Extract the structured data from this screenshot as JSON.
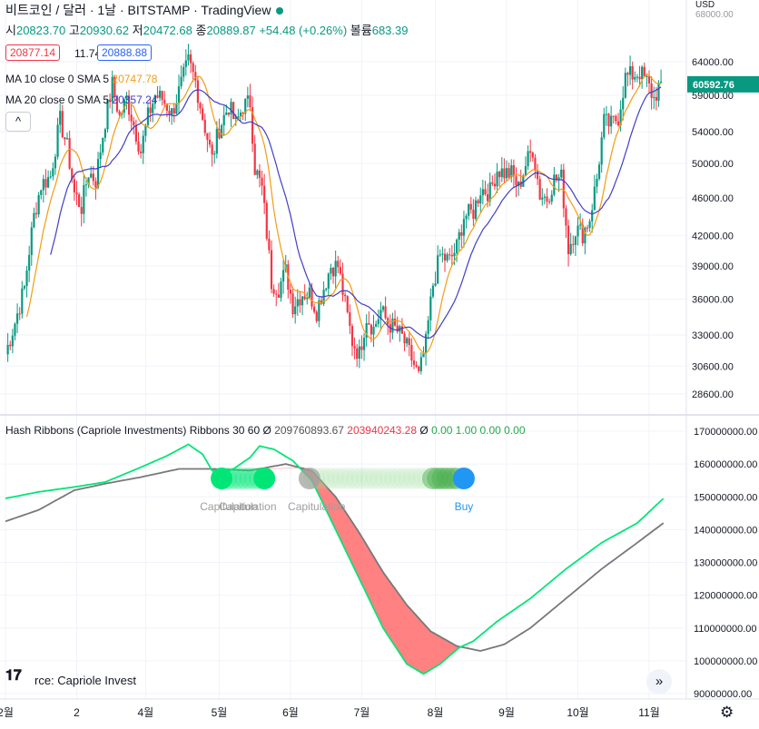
{
  "header": {
    "title": "비트코인 / 달러 · 1날 · BITSTAMP · TradingView",
    "open_label": "시",
    "open": "20823.70",
    "high_label": "고",
    "high": "20930.62",
    "low_label": "저",
    "low": "20472.68",
    "close_label": "종",
    "close": "20889.87",
    "change": "+54.48 (+0.26%)",
    "volume_label": "볼륨",
    "volume": "683.39"
  },
  "trade": {
    "sell": "20877.14",
    "spread": "11.74",
    "buy": "20888.88"
  },
  "ma10": {
    "label": "MA 10 close 0 SMA 5",
    "value": "20747.78"
  },
  "ma20": {
    "label": "MA 20 close 0 SMA 5",
    "value": "20357.24"
  },
  "collapse_label": "^",
  "indicator": {
    "label": "Hash Ribbons (Capriole Investments) Ribbons 30 60",
    "v0": "Ø",
    "v1": "209760893.67",
    "v2": "203940243.28",
    "v3": "Ø",
    "v4": "0.00",
    "v5": "1.00",
    "v6": "0.00",
    "v7": "0.00"
  },
  "signals": [
    {
      "text": "Capitulation",
      "x": "2021-05-01"
    },
    {
      "text": "Capitulation",
      "x": "2021-05-09"
    },
    {
      "text": "Capitulation",
      "x": "2021-06-07"
    },
    {
      "text": "Buy",
      "x": "2021-08-08"
    }
  ],
  "source_text": "rce: Capriole Invest",
  "nav_icon": "double-chevron-right-icon",
  "settings_icon": "gear-icon",
  "colors": {
    "up": "#089981",
    "down": "#f23645",
    "ma10": "#f39c12",
    "ma20": "#3f3fc8",
    "hash_fast": "#00e676",
    "hash_slow": "#787878",
    "ribbon": "#ff6b6b",
    "buy": "#2196f3",
    "capitulation": "#00e676",
    "price_tag": "#089981"
  },
  "chart_data": [
    {
      "type": "candlestick",
      "title": "비트코인 / 달러",
      "price_axis_label": "USD",
      "y_ticks": [
        28600,
        30600,
        33000,
        36000,
        39000,
        42000,
        46000,
        50000,
        54000,
        59000,
        64000
      ],
      "y_tick_labels": [
        "28600.00",
        "30600.00",
        "33000.00",
        "36000.00",
        "39000.00",
        "42000.00",
        "46000.00",
        "50000.00",
        "54000.00",
        "59000.00",
        "64000.00"
      ],
      "top_partial_tick": "68000.00",
      "last_price": "60592.76",
      "x_tick_labels": [
        "2월",
        "2",
        "4월",
        "5월",
        "6월",
        "7월",
        "8월",
        "9월",
        "10월",
        "11월"
      ],
      "x_tick_dates": [
        "2021-01-27",
        "2021-02-26",
        "2021-03-27",
        "2021-04-27",
        "2021-05-27",
        "2021-06-26",
        "2021-07-27",
        "2021-08-26",
        "2021-09-25",
        "2021-10-25"
      ],
      "series": [
        {
          "name": "MA 10 close 0 SMA 5"
        },
        {
          "name": "MA 20 close 0 SMA 5"
        }
      ],
      "close_path": [
        [
          "2021-01-27",
          31500
        ],
        [
          "2021-01-31",
          34000
        ],
        [
          "2021-02-04",
          37000
        ],
        [
          "2021-02-08",
          44000
        ],
        [
          "2021-02-11",
          47500
        ],
        [
          "2021-02-15",
          48500
        ],
        [
          "2021-02-19",
          55500
        ],
        [
          "2021-02-22",
          52000
        ],
        [
          "2021-02-25",
          46500
        ],
        [
          "2021-02-28",
          45000
        ],
        [
          "2021-03-03",
          49000
        ],
        [
          "2021-03-06",
          48000
        ],
        [
          "2021-03-10",
          55500
        ],
        [
          "2021-03-13",
          60500
        ],
        [
          "2021-03-16",
          56000
        ],
        [
          "2021-03-19",
          58500
        ],
        [
          "2021-03-22",
          55000
        ],
        [
          "2021-03-25",
          51500
        ],
        [
          "2021-03-28",
          56000
        ],
        [
          "2021-03-31",
          59000
        ],
        [
          "2021-04-03",
          58500
        ],
        [
          "2021-04-07",
          56500
        ],
        [
          "2021-04-10",
          59500
        ],
        [
          "2021-04-14",
          64000
        ],
        [
          "2021-04-17",
          61000
        ],
        [
          "2021-04-20",
          56000
        ],
        [
          "2021-04-24",
          50500
        ],
        [
          "2021-04-27",
          54500
        ],
        [
          "2021-05-01",
          57500
        ],
        [
          "2021-05-04",
          55000
        ],
        [
          "2021-05-07",
          57500
        ],
        [
          "2021-05-10",
          58000
        ],
        [
          "2021-05-12",
          49500
        ],
        [
          "2021-05-15",
          47000
        ],
        [
          "2021-05-19",
          37500
        ],
        [
          "2021-05-22",
          37000
        ],
        [
          "2021-05-25",
          38500
        ],
        [
          "2021-05-28",
          35500
        ],
        [
          "2021-06-01",
          36500
        ],
        [
          "2021-06-04",
          36500
        ],
        [
          "2021-06-07",
          35000
        ],
        [
          "2021-06-10",
          37000
        ],
        [
          "2021-06-13",
          39000
        ],
        [
          "2021-06-16",
          39000
        ],
        [
          "2021-06-19",
          35500
        ],
        [
          "2021-06-22",
          32500
        ],
        [
          "2021-06-25",
          31500
        ],
        [
          "2021-06-28",
          34500
        ],
        [
          "2021-07-01",
          33500
        ],
        [
          "2021-07-04",
          35000
        ],
        [
          "2021-07-07",
          34000
        ],
        [
          "2021-07-10",
          33500
        ],
        [
          "2021-07-13",
          32800
        ],
        [
          "2021-07-16",
          31600
        ],
        [
          "2021-07-20",
          29800
        ],
        [
          "2021-07-23",
          32300
        ],
        [
          "2021-07-26",
          37300
        ],
        [
          "2021-07-29",
          40000
        ],
        [
          "2021-08-02",
          39500
        ],
        [
          "2021-08-05",
          40800
        ],
        [
          "2021-08-08",
          44000
        ],
        [
          "2021-08-12",
          44500
        ],
        [
          "2021-08-15",
          47000
        ],
        [
          "2021-08-19",
          46700
        ],
        [
          "2021-08-22",
          49300
        ],
        [
          "2021-08-25",
          48900
        ],
        [
          "2021-08-28",
          48800
        ],
        [
          "2021-08-31",
          47100
        ],
        [
          "2021-09-03",
          49900
        ],
        [
          "2021-09-06",
          51800
        ],
        [
          "2021-09-09",
          46400
        ],
        [
          "2021-09-12",
          46000
        ],
        [
          "2021-09-15",
          48100
        ],
        [
          "2021-09-18",
          48300
        ],
        [
          "2021-09-21",
          40700
        ],
        [
          "2021-09-24",
          42700
        ],
        [
          "2021-09-27",
          42200
        ],
        [
          "2021-09-30",
          43800
        ],
        [
          "2021-10-03",
          48200
        ],
        [
          "2021-10-06",
          55300
        ],
        [
          "2021-10-09",
          54900
        ],
        [
          "2021-10-12",
          56000
        ],
        [
          "2021-10-15",
          61600
        ],
        [
          "2021-10-18",
          62000
        ],
        [
          "2021-10-21",
          62400
        ],
        [
          "2021-10-24",
          60900
        ],
        [
          "2021-10-27",
          58500
        ],
        [
          "2021-10-30",
          61000
        ]
      ]
    },
    {
      "type": "line",
      "title": "Hash Ribbons (Capriole Investments) Ribbons 30 60",
      "y_ticks": [
        90000000,
        100000000,
        110000000,
        120000000,
        130000000,
        140000000,
        150000000,
        160000000,
        170000000
      ],
      "y_tick_labels": [
        "90000000.00",
        "100000000.00",
        "110000000.00",
        "120000000.00",
        "130000000.00",
        "140000000.00",
        "150000000.00",
        "160000000.00",
        "170000000.00"
      ],
      "series": [
        {
          "name": "fast",
          "points": [
            [
              "2021-01-27",
              149500000
            ],
            [
              "2021-02-10",
              151500000
            ],
            [
              "2021-02-25",
              153000000
            ],
            [
              "2021-03-10",
              154500000
            ],
            [
              "2021-03-25",
              159000000
            ],
            [
              "2021-04-05",
              162500000
            ],
            [
              "2021-04-14",
              166000000
            ],
            [
              "2021-04-20",
              163000000
            ],
            [
              "2021-04-24",
              158000000
            ],
            [
              "2021-04-28",
              157000000
            ],
            [
              "2021-05-03",
              158500000
            ],
            [
              "2021-05-10",
              162000000
            ],
            [
              "2021-05-14",
              165500000
            ],
            [
              "2021-05-20",
              164500000
            ],
            [
              "2021-05-28",
              161000000
            ],
            [
              "2021-06-05",
              155000000
            ],
            [
              "2021-06-15",
              140000000
            ],
            [
              "2021-06-25",
              125000000
            ],
            [
              "2021-07-05",
              110000000
            ],
            [
              "2021-07-15",
              99000000
            ],
            [
              "2021-07-22",
              96000000
            ],
            [
              "2021-07-29",
              99000000
            ],
            [
              "2021-08-06",
              104000000
            ],
            [
              "2021-08-12",
              106000000
            ],
            [
              "2021-08-22",
              112000000
            ],
            [
              "2021-09-05",
              119000000
            ],
            [
              "2021-09-20",
              128000000
            ],
            [
              "2021-10-05",
              136000000
            ],
            [
              "2021-10-20",
              142000000
            ],
            [
              "2021-10-31",
              149500000
            ]
          ]
        },
        {
          "name": "slow",
          "points": [
            [
              "2021-01-27",
              142500000
            ],
            [
              "2021-02-10",
              146000000
            ],
            [
              "2021-02-25",
              152000000
            ],
            [
              "2021-03-10",
              154000000
            ],
            [
              "2021-03-25",
              156000000
            ],
            [
              "2021-04-10",
              158500000
            ],
            [
              "2021-04-25",
              158500000
            ],
            [
              "2021-05-10",
              158000000
            ],
            [
              "2021-05-25",
              160000000
            ],
            [
              "2021-06-05",
              158000000
            ],
            [
              "2021-06-15",
              150000000
            ],
            [
              "2021-06-25",
              139000000
            ],
            [
              "2021-07-05",
              127000000
            ],
            [
              "2021-07-15",
              117000000
            ],
            [
              "2021-07-25",
              109000000
            ],
            [
              "2021-08-05",
              104500000
            ],
            [
              "2021-08-15",
              103000000
            ],
            [
              "2021-08-25",
              105000000
            ],
            [
              "2021-09-05",
              110000000
            ],
            [
              "2021-09-20",
              119000000
            ],
            [
              "2021-10-05",
              128000000
            ],
            [
              "2021-10-20",
              136000000
            ],
            [
              "2021-10-31",
              142000000
            ]
          ]
        }
      ]
    }
  ]
}
